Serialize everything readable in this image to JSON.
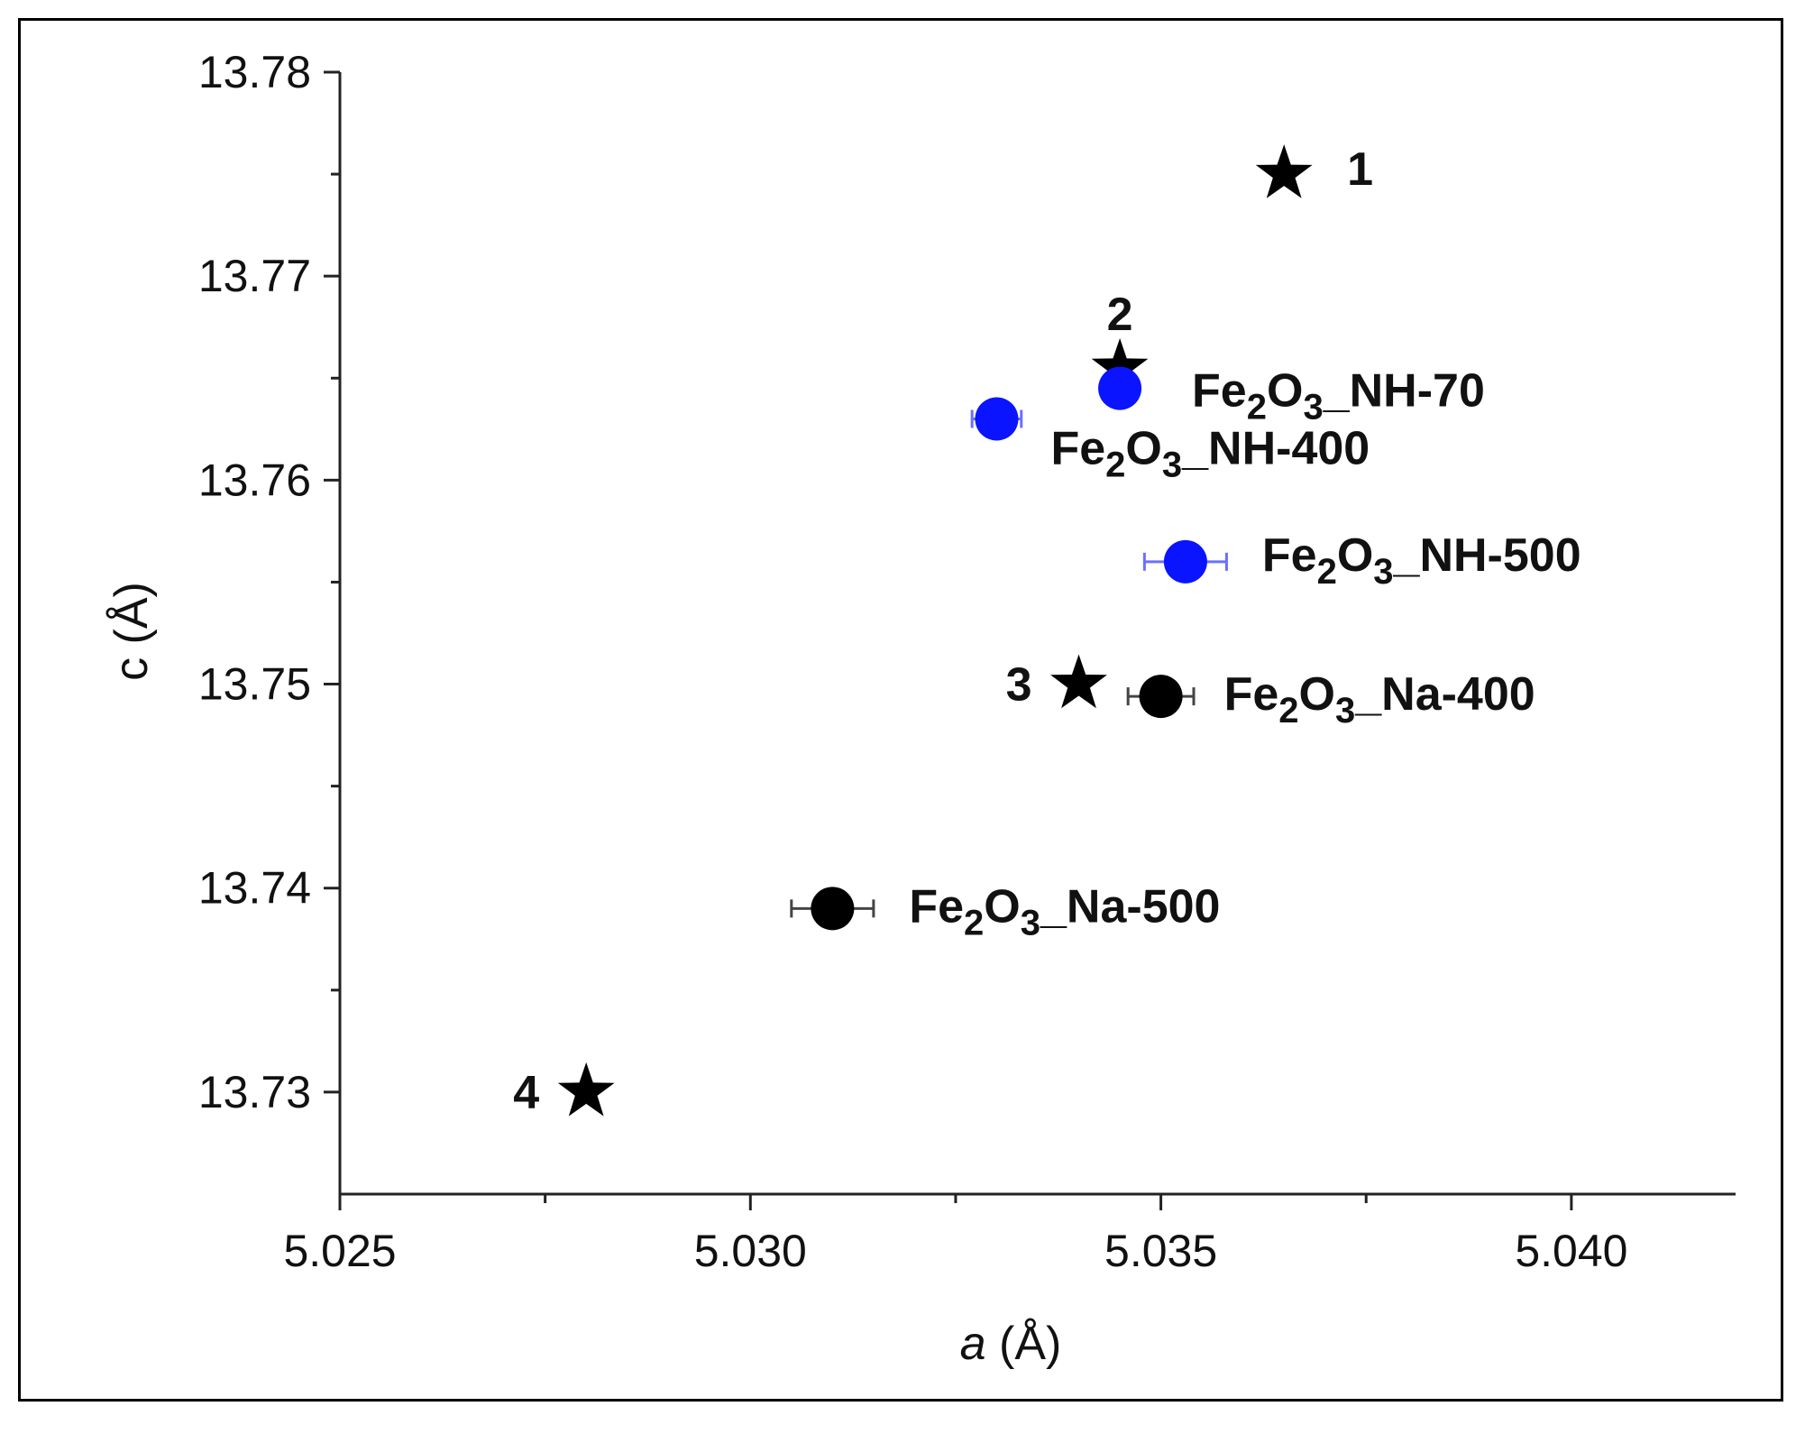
{
  "chart_data": {
    "type": "scatter",
    "xlabel": {
      "var": "a",
      "unit": "(Å)"
    },
    "ylabel": {
      "var": "c",
      "unit": "(Å)"
    },
    "xlim": [
      5.025,
      5.042
    ],
    "ylim": [
      13.725,
      13.78
    ],
    "xticks": [
      {
        "value": 5.025,
        "label": "5.025"
      },
      {
        "value": 5.03,
        "label": "5.030"
      },
      {
        "value": 5.035,
        "label": "5.035"
      },
      {
        "value": 5.04,
        "label": "5.040"
      }
    ],
    "yticks": [
      {
        "value": 13.73,
        "label": "13.73"
      },
      {
        "value": 13.74,
        "label": "13.74"
      },
      {
        "value": 13.75,
        "label": "13.75"
      },
      {
        "value": 13.76,
        "label": "13.76"
      },
      {
        "value": 13.77,
        "label": "13.77"
      },
      {
        "value": 13.78,
        "label": "13.78"
      }
    ],
    "grid": false,
    "colors": {
      "nh": "#0a14ff",
      "na": "#000000",
      "ref": "#000000",
      "errorbar_nh": "#6a70ff",
      "errorbar_na": "#444444"
    },
    "reference_points": [
      {
        "id": "ref-1",
        "label": "1",
        "x": 5.0365,
        "y": 13.775,
        "marker": "star",
        "label_pos": "right"
      },
      {
        "id": "ref-2",
        "label": "2",
        "x": 5.0345,
        "y": 13.7655,
        "marker": "star",
        "label_pos": "above"
      },
      {
        "id": "ref-3",
        "label": "3",
        "x": 5.034,
        "y": 13.75,
        "marker": "star",
        "label_pos": "left"
      },
      {
        "id": "ref-4",
        "label": "4",
        "x": 5.028,
        "y": 13.73,
        "marker": "star",
        "label_pos": "left"
      }
    ],
    "samples": [
      {
        "id": "nh-70",
        "label_main": "Fe",
        "sub1": "2",
        "mid": "O",
        "sub2": "3",
        "suffix": "_NH-70",
        "x": 5.0345,
        "y": 13.7645,
        "xerr": 0.0002,
        "yerr": 0.0003,
        "color": "nh",
        "label_dx": 80,
        "label_dy": 20
      },
      {
        "id": "nh-400",
        "label_main": "Fe",
        "sub1": "2",
        "mid": "O",
        "sub2": "3",
        "suffix": "_NH-400",
        "x": 5.033,
        "y": 13.763,
        "xerr": 0.0003,
        "yerr": 0.0002,
        "color": "nh",
        "label_dx": 60,
        "label_dy": 50
      },
      {
        "id": "nh-500",
        "label_main": "Fe",
        "sub1": "2",
        "mid": "O",
        "sub2": "3",
        "suffix": "_NH-500",
        "x": 5.0353,
        "y": 13.756,
        "xerr": 0.0005,
        "yerr": 0.0002,
        "color": "nh",
        "label_dx": 85,
        "label_dy": 10
      },
      {
        "id": "na-400",
        "label_main": "Fe",
        "sub1": "2",
        "mid": "O",
        "sub2": "3",
        "suffix": "_Na-400",
        "x": 5.035,
        "y": 13.7494,
        "xerr": 0.0004,
        "yerr": 0.0003,
        "color": "na",
        "label_dx": 70,
        "label_dy": 15
      },
      {
        "id": "na-500",
        "label_main": "Fe",
        "sub1": "2",
        "mid": "O",
        "sub2": "3",
        "suffix": "_Na-500",
        "x": 5.031,
        "y": 13.739,
        "xerr": 0.0005,
        "yerr": 0.0008,
        "color": "na",
        "label_dx": 85,
        "label_dy": 15
      }
    ]
  }
}
